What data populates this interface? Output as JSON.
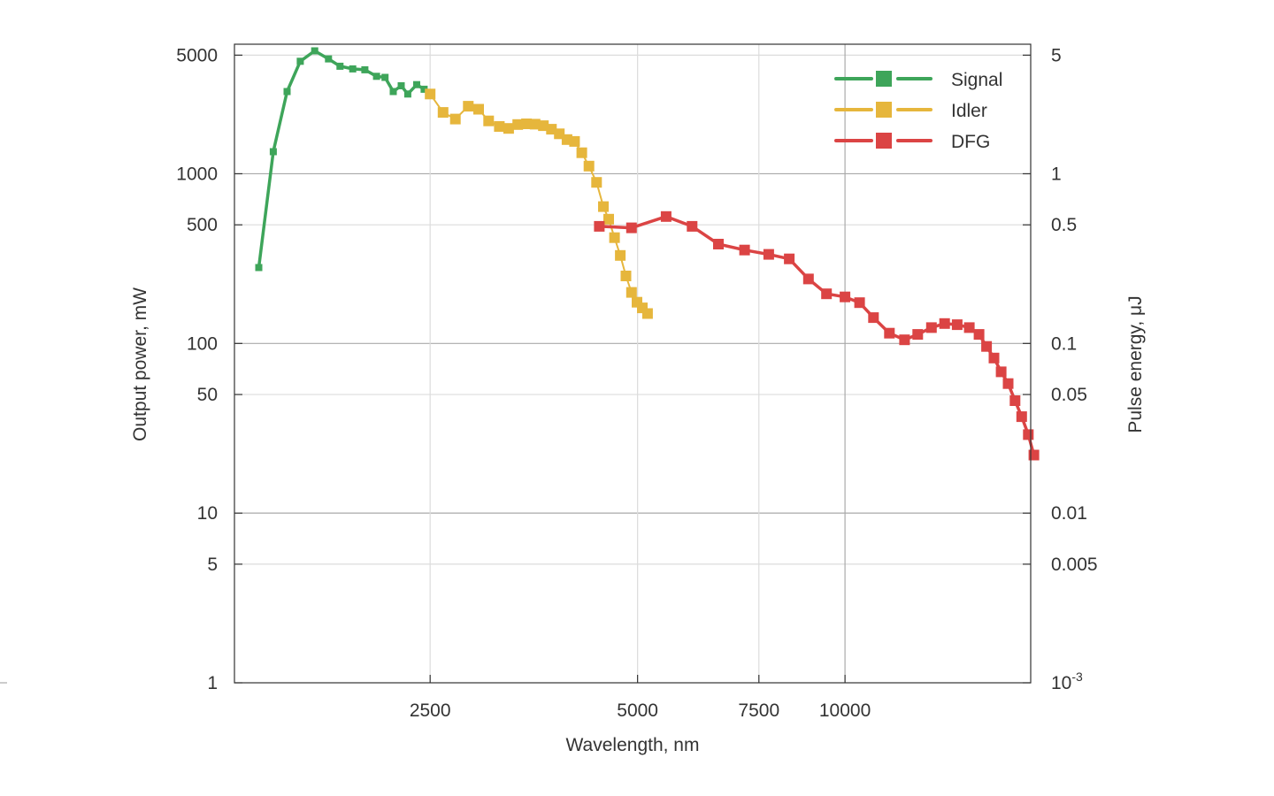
{
  "chart_data": {
    "type": "line",
    "xlabel": "Wavelength, nm",
    "ylabel": "Output power, mW",
    "y2label": "Pulse energy, μJ",
    "xscale": "log",
    "yscale": "log",
    "xlim": [
      1300,
      18600
    ],
    "ylim": [
      1,
      5800
    ],
    "x_ticks": [
      2500,
      5000,
      7500,
      10000
    ],
    "x_tick_labels": [
      "2500",
      "5000",
      "7500",
      "10000"
    ],
    "y_ticks": [
      1,
      5,
      10,
      50,
      100,
      500,
      1000,
      5000
    ],
    "y_tick_labels": [
      "1",
      "5",
      "10",
      "50",
      "100",
      "500",
      "1000",
      "5000"
    ],
    "y2_tick_labels": [
      {
        "base": "10",
        "exp": "-3"
      },
      {
        "text": "0.005"
      },
      {
        "text": "0.01"
      },
      {
        "text": "0.05"
      },
      {
        "text": "0.1"
      },
      {
        "text": "0.5"
      },
      {
        "text": "1"
      },
      {
        "text": "5"
      }
    ],
    "grid": true,
    "legend_position": "top-right",
    "series": [
      {
        "name": "Signal",
        "color": "#3ea55a",
        "marker": "square",
        "points": [
          [
            1410,
            280
          ],
          [
            1480,
            1350
          ],
          [
            1550,
            3050
          ],
          [
            1620,
            4600
          ],
          [
            1700,
            5300
          ],
          [
            1780,
            4750
          ],
          [
            1850,
            4300
          ],
          [
            1930,
            4150
          ],
          [
            2010,
            4100
          ],
          [
            2090,
            3750
          ],
          [
            2150,
            3700
          ],
          [
            2210,
            3050
          ],
          [
            2270,
            3300
          ],
          [
            2320,
            2950
          ],
          [
            2390,
            3350
          ],
          [
            2450,
            3150
          ]
        ]
      },
      {
        "name": "Idler",
        "color": "#e6b63c",
        "marker": "square",
        "points": [
          [
            2500,
            2950
          ],
          [
            2610,
            2300
          ],
          [
            2720,
            2100
          ],
          [
            2840,
            2500
          ],
          [
            2940,
            2400
          ],
          [
            3040,
            2050
          ],
          [
            3150,
            1900
          ],
          [
            3250,
            1850
          ],
          [
            3350,
            1950
          ],
          [
            3450,
            1970
          ],
          [
            3550,
            1960
          ],
          [
            3650,
            1920
          ],
          [
            3750,
            1830
          ],
          [
            3850,
            1720
          ],
          [
            3950,
            1590
          ],
          [
            4050,
            1550
          ],
          [
            4150,
            1330
          ],
          [
            4250,
            1110
          ],
          [
            4360,
            890
          ],
          [
            4460,
            640
          ],
          [
            4540,
            540
          ],
          [
            4630,
            420
          ],
          [
            4720,
            330
          ],
          [
            4810,
            250
          ],
          [
            4900,
            200
          ],
          [
            4990,
            175
          ],
          [
            5080,
            162
          ],
          [
            5170,
            150
          ]
        ]
      },
      {
        "name": "DFG",
        "color": "#db4444",
        "marker": "square",
        "points": [
          [
            4400,
            490
          ],
          [
            4900,
            480
          ],
          [
            5500,
            560
          ],
          [
            6000,
            490
          ],
          [
            6550,
            385
          ],
          [
            7150,
            355
          ],
          [
            7750,
            335
          ],
          [
            8300,
            315
          ],
          [
            8850,
            240
          ],
          [
            9400,
            196
          ],
          [
            10000,
            188
          ],
          [
            10500,
            174
          ],
          [
            11000,
            142
          ],
          [
            11600,
            115
          ],
          [
            12200,
            105
          ],
          [
            12750,
            113
          ],
          [
            13350,
            124
          ],
          [
            13950,
            131
          ],
          [
            14550,
            129
          ],
          [
            15150,
            124
          ],
          [
            15650,
            113
          ],
          [
            16050,
            96
          ],
          [
            16450,
            82
          ],
          [
            16850,
            68
          ],
          [
            17250,
            58
          ],
          [
            17650,
            46
          ],
          [
            18050,
            37
          ],
          [
            18450,
            29
          ],
          [
            18800,
            22
          ]
        ]
      }
    ]
  }
}
